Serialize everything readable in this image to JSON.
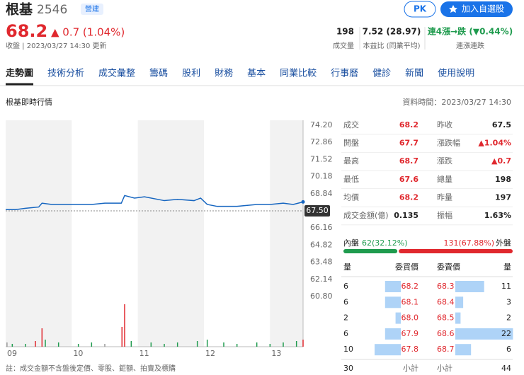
{
  "header": {
    "name": "根基",
    "code": "2546",
    "badge": "營建",
    "buttons": [
      "PK",
      "加入自選股"
    ]
  },
  "quote": {
    "price": "68.2",
    "change": "▲ 0.7 (1.04%)",
    "status": "收盤 | 2023/03/27 14:30 更新",
    "stats": [
      {
        "value": "198",
        "label": "成交量"
      },
      {
        "value": "7.52 (28.97)",
        "label": "本益比 (同業平均)"
      },
      {
        "value": "連4漲→跌 (▼0.44%)",
        "label": "連漲連跌"
      }
    ]
  },
  "tabs": [
    "走勢圖",
    "技術分析",
    "成交彙整",
    "籌碼",
    "股利",
    "財務",
    "基本",
    "同業比較",
    "行事曆",
    "健診",
    "新聞",
    "使用說明"
  ],
  "section_title": "根基即時行情",
  "data_time": "資料時間：2023/03/27 14:30",
  "price_chart": {
    "type": "line",
    "color": "#1565c0",
    "xlim": [
      9,
      13.5
    ],
    "xticks": [
      {
        "value": 9,
        "label": "09"
      },
      {
        "value": 10,
        "label": "10"
      },
      {
        "value": 11,
        "label": "11"
      },
      {
        "value": 12,
        "label": "12"
      },
      {
        "value": 13,
        "label": "13"
      }
    ],
    "ylim": [
      60.8,
      74.2
    ],
    "yticks": [
      {
        "value": 74.2,
        "label": "74.20"
      },
      72.86,
      71.52,
      70.18,
      68.84,
      66.16,
      64.82,
      63.48,
      62.14,
      {
        "value": 60.8,
        "label": "60.80"
      }
    ],
    "reference": {
      "value": 67.5,
      "label": "67.50"
    },
    "x": [
      9,
      9.15,
      9.3,
      9.5,
      9.55,
      9.7,
      10.0,
      10.3,
      10.5,
      10.75,
      10.8,
      10.95,
      11.1,
      11.4,
      11.6,
      11.85,
      11.95,
      12.05,
      12.2,
      12.5,
      12.8,
      13.0,
      13.2,
      13.35,
      13.5
    ],
    "values": [
      67.6,
      67.6,
      67.7,
      67.8,
      68.1,
      68.0,
      68.0,
      68.0,
      68.1,
      68.1,
      68.7,
      68.5,
      68.6,
      68.3,
      68.4,
      68.3,
      68.5,
      68.0,
      67.85,
      67.85,
      68.0,
      68.0,
      68.1,
      68.0,
      68.2
    ],
    "volume": {
      "ylim": [
        0,
        30
      ],
      "x": [
        9.02,
        9.1,
        9.3,
        9.45,
        9.55,
        9.6,
        9.8,
        10.1,
        10.3,
        10.5,
        10.76,
        10.8,
        10.9,
        11.2,
        11.4,
        11.6,
        11.9,
        12.05,
        12.3,
        12.5,
        12.8,
        13.0,
        13.2,
        13.4,
        13.5
      ],
      "values": [
        3,
        2,
        2,
        4,
        13,
        5,
        3,
        2,
        3,
        2,
        14,
        30,
        4,
        3,
        2,
        3,
        4,
        5,
        3,
        2,
        3,
        2,
        3,
        4,
        5
      ],
      "colors": [
        "#999",
        "#1f9b4e",
        "#1f9b4e",
        "#e0282e",
        "#e0282e",
        "#1f9b4e",
        "#1f9b4e",
        "#1f9b4e",
        "#1f9b4e",
        "#999",
        "#e0282e",
        "#e0282e",
        "#1f9b4e",
        "#1f9b4e",
        "#1f9b4e",
        "#1f9b4e",
        "#1f9b4e",
        "#1f9b4e",
        "#1f9b4e",
        "#1f9b4e",
        "#1f9b4e",
        "#1f9b4e",
        "#1f9b4e",
        "#1f9b4e",
        "#e0282e"
      ]
    }
  },
  "quote_table": {
    "rows": [
      [
        {
          "label": "成交",
          "value": "68.2",
          "color": "#e0282e"
        },
        {
          "label": "昨收",
          "value": "67.5",
          "color": "#222"
        }
      ],
      [
        {
          "label": "開盤",
          "value": "67.7",
          "color": "#e0282e"
        },
        {
          "label": "漲跌幅",
          "value": "▲1.04%",
          "color": "#e0282e"
        }
      ],
      [
        {
          "label": "最高",
          "value": "68.7",
          "color": "#e0282e"
        },
        {
          "label": "漲跌",
          "value": "▲0.7",
          "color": "#e0282e"
        }
      ],
      [
        {
          "label": "最低",
          "value": "67.6",
          "color": "#e0282e"
        },
        {
          "label": "總量",
          "value": "198",
          "color": "#222"
        }
      ],
      [
        {
          "label": "均價",
          "value": "68.2",
          "color": "#e0282e"
        },
        {
          "label": "昨量",
          "value": "197",
          "color": "#222"
        }
      ],
      [
        {
          "label": "成交金額(億)",
          "value": "0.135",
          "color": "#222"
        },
        {
          "label": "振幅",
          "value": "1.63%",
          "color": "#222"
        }
      ]
    ]
  },
  "order_flow": {
    "inner": {
      "label": "內盤",
      "text": "62(32.12%)",
      "pct": 32.12,
      "color": "#1f9b4e"
    },
    "outer": {
      "label": "外盤",
      "text": "131(67.88%)",
      "pct": 67.88,
      "color": "#e0282e"
    }
  },
  "order_book": {
    "headers": [
      "量",
      "委買價",
      "委賣價",
      "量"
    ],
    "rows": [
      {
        "bid_qty": 6,
        "bid": "68.2",
        "ask": "68.3",
        "ask_qty": 11
      },
      {
        "bid_qty": 6,
        "bid": "68.1",
        "ask": "68.4",
        "ask_qty": 3
      },
      {
        "bid_qty": 2,
        "bid": "68.0",
        "ask": "68.5",
        "ask_qty": 2
      },
      {
        "bid_qty": 6,
        "bid": "67.9",
        "ask": "68.6",
        "ask_qty": 22
      },
      {
        "bid_qty": 10,
        "bid": "67.8",
        "ask": "68.7",
        "ask_qty": 6
      }
    ],
    "bid_total": 30,
    "ask_total": 44,
    "subtotal_label": "小計"
  },
  "footnote": "註：成交金額不含盤後定價、零股、鉅額、拍賣及標購"
}
